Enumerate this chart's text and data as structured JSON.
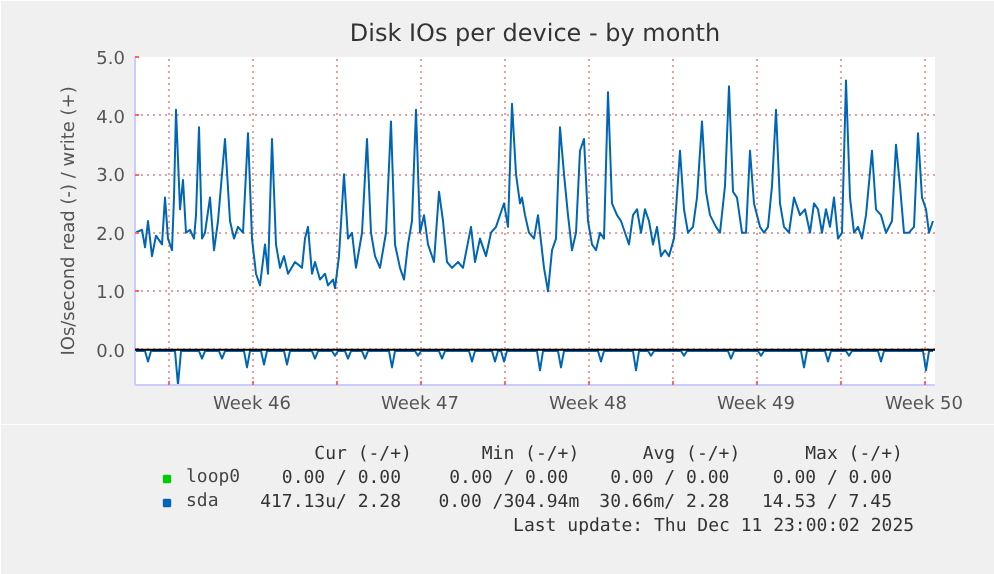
{
  "chart_data": {
    "type": "line",
    "title": "Disk IOs per device - by month",
    "ylabel": "IOs/second read (-) / write (+)",
    "xlim": [
      "2025-11-08T15:00",
      "2025-12-11T23:00"
    ],
    "ylim": [
      -0.6,
      5.0
    ],
    "xticks": [
      {
        "value": "2025-11-10T00:00",
        "label": null
      },
      {
        "value": "2025-11-13T12:00",
        "label": "Week 46"
      },
      {
        "value": "2025-11-17T00:00",
        "label": null
      },
      {
        "value": "2025-11-20T12:00",
        "label": "Week 47"
      },
      {
        "value": "2025-11-24T00:00",
        "label": null
      },
      {
        "value": "2025-11-27T12:00",
        "label": "Week 48"
      },
      {
        "value": "2025-12-01T00:00",
        "label": null
      },
      {
        "value": "2025-12-04T12:00",
        "label": "Week 49"
      },
      {
        "value": "2025-12-08T00:00",
        "label": null
      },
      {
        "value": "2025-12-11T12:00",
        "label": "Week 50"
      }
    ],
    "yticks": [
      {
        "value": 0,
        "label": "0.0"
      },
      {
        "value": 1,
        "label": "1.0"
      },
      {
        "value": 2,
        "label": "2.0"
      },
      {
        "value": 3,
        "label": "3.0"
      },
      {
        "value": 4,
        "label": "4.0"
      },
      {
        "value": 5,
        "label": "5.0"
      }
    ],
    "grid": true,
    "legend": "bottom left",
    "ref_lines": [
      {
        "axis": "y",
        "value": 0,
        "label": null,
        "color": "#000000"
      }
    ],
    "series": [
      {
        "name": "loop0",
        "color": "#00cc00"
      },
      {
        "name": "sda",
        "color": "#0066b3",
        "x": [
          "2025-11-08T15:00",
          "2025-11-08T22:00",
          "2025-11-09T01:00",
          "2025-11-09T04:00",
          "2025-11-09T08:00",
          "2025-11-09T12:00",
          "2025-11-09T18:00",
          "2025-11-09T21:00",
          "2025-11-10T00:00",
          "2025-11-10T04:00",
          "2025-11-10T06:00",
          "2025-11-10T08:00",
          "2025-11-10T12:00",
          "2025-11-10T15:00",
          "2025-11-10T18:00",
          "2025-11-10T22:00",
          "2025-11-11T02:00",
          "2025-11-11T04:00",
          "2025-11-11T07:00",
          "2025-11-11T10:00",
          "2025-11-11T13:00",
          "2025-11-11T18:00",
          "2025-11-11T22:00",
          "2025-11-12T02:00",
          "2025-11-12T09:00",
          "2025-11-12T14:00",
          "2025-11-12T18:00",
          "2025-11-12T22:00",
          "2025-11-13T03:00",
          "2025-11-13T08:00",
          "2025-11-13T12:00",
          "2025-11-13T16:00",
          "2025-11-13T20:00",
          "2025-11-14T01:00",
          "2025-11-14T04:00",
          "2025-11-14T08:00",
          "2025-11-14T12:00",
          "2025-11-14T16:00",
          "2025-11-14T20:00",
          "2025-11-15T00:00",
          "2025-11-15T07:00",
          "2025-11-15T14:00",
          "2025-11-15T17:00",
          "2025-11-15T20:00",
          "2025-11-16T00:00",
          "2025-11-16T03:00",
          "2025-11-16T08:00",
          "2025-11-16T13:00",
          "2025-11-16T16:00",
          "2025-11-16T21:00",
          "2025-11-16T23:00",
          "2025-11-17T03:00",
          "2025-11-17T08:00",
          "2025-11-17T12:00",
          "2025-11-17T16:00",
          "2025-11-17T20:00",
          "2025-11-18T02:00",
          "2025-11-18T07:00",
          "2025-11-18T11:00",
          "2025-11-18T15:00",
          "2025-11-18T20:00",
          "2025-11-19T02:00",
          "2025-11-19T07:00",
          "2025-11-19T11:00",
          "2025-11-19T16:00",
          "2025-11-19T20:00",
          "2025-11-20T00:00",
          "2025-11-20T04:00",
          "2025-11-20T08:00",
          "2025-11-20T12:00",
          "2025-11-20T16:00",
          "2025-11-20T20:00",
          "2025-11-21T02:00",
          "2025-11-21T07:00",
          "2025-11-21T11:00",
          "2025-11-21T15:00",
          "2025-11-21T20:00",
          "2025-11-22T02:00",
          "2025-11-22T07:00",
          "2025-11-22T15:00",
          "2025-11-22T19:00",
          "2025-11-23T00:00",
          "2025-11-23T06:00",
          "2025-11-23T11:00",
          "2025-11-23T16:00",
          "2025-11-23T22:00",
          "2025-11-24T00:00",
          "2025-11-24T04:00",
          "2025-11-24T08:00",
          "2025-11-24T12:00",
          "2025-11-24T16:00",
          "2025-11-24T18:00",
          "2025-11-24T21:00",
          "2025-11-25T01:00",
          "2025-11-25T06:00",
          "2025-11-25T10:00",
          "2025-11-25T16:00",
          "2025-11-25T20:00",
          "2025-11-26T00:00",
          "2025-11-26T04:00",
          "2025-11-26T08:00",
          "2025-11-26T12:00",
          "2025-11-26T16:00",
          "2025-11-26T20:00",
          "2025-11-27T00:00",
          "2025-11-27T04:00",
          "2025-11-27T08:00",
          "2025-11-27T12:00",
          "2025-11-27T16:00",
          "2025-11-27T20:00",
          "2025-11-28T00:00",
          "2025-11-28T04:00",
          "2025-11-28T08:00",
          "2025-11-28T12:00",
          "2025-11-28T17:00",
          "2025-11-28T21:00",
          "2025-11-29T01:00",
          "2025-11-29T05:00",
          "2025-11-29T09:00",
          "2025-11-29T13:00",
          "2025-11-29T17:00",
          "2025-11-29T21:00",
          "2025-11-30T01:00",
          "2025-11-30T05:00",
          "2025-11-30T09:00",
          "2025-11-30T13:00",
          "2025-11-30T17:00",
          "2025-11-30T21:00",
          "2025-12-01T02:00",
          "2025-12-01T08:00",
          "2025-12-01T12:00",
          "2025-12-01T16:00",
          "2025-12-01T21:00",
          "2025-12-02T01:00",
          "2025-12-02T06:00",
          "2025-12-02T10:00",
          "2025-12-02T14:00",
          "2025-12-02T20:00",
          "2025-12-03T00:00",
          "2025-12-03T05:00",
          "2025-12-03T09:00",
          "2025-12-03T13:00",
          "2025-12-03T17:00",
          "2025-12-03T22:00",
          "2025-12-04T02:00",
          "2025-12-04T06:00",
          "2025-12-04T10:00",
          "2025-12-04T16:00",
          "2025-12-04T20:00",
          "2025-12-05T00:00",
          "2025-12-05T04:00",
          "2025-12-05T08:00",
          "2025-12-05T12:00",
          "2025-12-05T16:00",
          "2025-12-05T21:00",
          "2025-12-06T02:00",
          "2025-12-06T08:00",
          "2025-12-06T13:00",
          "2025-12-06T18:00",
          "2025-12-06T22:00",
          "2025-12-07T02:00",
          "2025-12-07T06:00",
          "2025-12-07T10:00",
          "2025-12-07T14:00",
          "2025-12-07T18:00",
          "2025-12-07T22:00",
          "2025-12-08T02:00",
          "2025-12-08T06:00",
          "2025-12-08T10:00",
          "2025-12-08T14:00",
          "2025-12-08T18:00",
          "2025-12-08T22:00",
          "2025-12-09T02:00",
          "2025-12-09T08:00",
          "2025-12-09T12:00",
          "2025-12-09T17:00",
          "2025-12-09T22:00",
          "2025-12-10T04:00",
          "2025-12-10T08:00",
          "2025-12-10T12:00",
          "2025-12-10T16:00",
          "2025-12-10T21:00",
          "2025-12-11T02:00",
          "2025-12-11T06:00",
          "2025-12-11T10:00",
          "2025-12-11T14:00",
          "2025-12-11T17:00",
          "2025-12-11T21:00"
        ],
        "values": [
          2.0,
          2.05,
          1.75,
          2.2,
          1.6,
          1.95,
          1.8,
          2.6,
          1.9,
          1.7,
          2.6,
          4.1,
          2.4,
          2.9,
          2.0,
          2.05,
          1.9,
          2.3,
          3.8,
          1.9,
          2.0,
          2.6,
          1.7,
          2.2,
          3.6,
          2.2,
          1.9,
          2.1,
          2.0,
          3.7,
          1.9,
          1.3,
          1.1,
          1.8,
          1.3,
          3.6,
          1.8,
          1.4,
          1.6,
          1.3,
          1.5,
          1.4,
          1.9,
          2.1,
          1.3,
          1.5,
          1.2,
          1.3,
          1.1,
          1.2,
          1.05,
          1.6,
          3.0,
          1.9,
          2.0,
          1.4,
          2.0,
          3.6,
          2.0,
          1.6,
          1.4,
          2.0,
          3.9,
          1.8,
          1.4,
          1.2,
          1.8,
          2.2,
          4.1,
          2.0,
          2.3,
          1.8,
          1.5,
          2.7,
          2.2,
          1.5,
          1.4,
          1.5,
          1.4,
          2.1,
          1.5,
          1.9,
          1.6,
          2.0,
          2.1,
          2.4,
          2.5,
          2.1,
          4.2,
          3.0,
          2.5,
          2.6,
          2.3,
          2.0,
          1.9,
          2.3,
          1.4,
          1.0,
          1.7,
          1.9,
          3.8,
          3.0,
          2.3,
          1.7,
          2.0,
          3.4,
          3.6,
          2.2,
          1.8,
          1.7,
          2.0,
          1.9,
          4.4,
          2.5,
          2.3,
          2.2,
          2.0,
          1.8,
          2.3,
          2.4,
          2.0,
          2.4,
          2.2,
          1.8,
          2.1,
          1.6,
          1.7,
          1.6,
          1.9,
          3.4,
          2.4,
          2.0,
          2.1,
          2.6,
          3.9,
          2.7,
          2.3,
          2.1,
          2.0,
          2.8,
          4.5,
          2.7,
          2.6,
          2.0,
          2.0,
          3.4,
          2.5,
          2.1,
          2.0,
          2.1,
          2.8,
          4.1,
          2.5,
          2.1,
          2.0,
          2.6,
          2.3,
          2.4,
          2.0,
          2.5,
          2.4,
          2.0,
          2.4,
          2.1,
          2.6,
          1.9,
          2.0,
          4.6,
          2.6,
          2.0,
          2.1,
          1.9,
          2.3,
          3.4,
          2.4,
          2.3,
          2.0,
          2.2,
          3.5,
          2.8,
          2.0,
          2.0,
          2.1,
          3.7,
          2.6,
          2.4,
          2.0,
          2.2
        ]
      },
      {
        "color": "#0066b3",
        "x": [
          "2025-11-08T15:00",
          "2025-11-09T01:00",
          "2025-11-09T04:00",
          "2025-11-09T07:00",
          "2025-11-10T07:00",
          "2025-11-10T10:00",
          "2025-11-10T13:00",
          "2025-11-11T07:00",
          "2025-11-11T10:00",
          "2025-11-11T13:00",
          "2025-11-12T03:00",
          "2025-11-12T06:00",
          "2025-11-12T09:00",
          "2025-11-13T04:00",
          "2025-11-13T07:00",
          "2025-11-13T10:00",
          "2025-11-13T21:00",
          "2025-11-14T00:00",
          "2025-11-14T03:00",
          "2025-11-14T20:00",
          "2025-11-14T23:00",
          "2025-11-15T02:00",
          "2025-11-16T00:00",
          "2025-11-16T03:00",
          "2025-11-16T06:00",
          "2025-11-16T20:00",
          "2025-11-16T23:00",
          "2025-11-17T02:00",
          "2025-11-17T09:00",
          "2025-11-17T12:00",
          "2025-11-17T15:00",
          "2025-11-18T02:00",
          "2025-11-18T05:00",
          "2025-11-18T08:00",
          "2025-11-19T05:00",
          "2025-11-19T08:00",
          "2025-11-19T11:00",
          "2025-11-20T07:00",
          "2025-11-20T10:00",
          "2025-11-20T13:00",
          "2025-11-21T07:00",
          "2025-11-21T10:00",
          "2025-11-21T13:00",
          "2025-11-22T13:00",
          "2025-11-22T16:00",
          "2025-11-22T19:00",
          "2025-11-23T12:00",
          "2025-11-23T15:00",
          "2025-11-23T18:00",
          "2025-11-23T21:00",
          "2025-11-24T00:00",
          "2025-11-24T03:00",
          "2025-11-25T09:00",
          "2025-11-25T12:00",
          "2025-11-25T15:00",
          "2025-11-26T06:00",
          "2025-11-26T09:00",
          "2025-11-26T12:00",
          "2025-11-27T22:00",
          "2025-11-28T01:00",
          "2025-11-28T04:00",
          "2025-11-29T09:00",
          "2025-11-29T12:00",
          "2025-11-29T15:00",
          "2025-11-30T00:00",
          "2025-11-30T03:00",
          "2025-11-30T06:00",
          "2025-12-01T09:00",
          "2025-12-01T12:00",
          "2025-12-01T15:00",
          "2025-12-03T08:00",
          "2025-12-03T11:00",
          "2025-12-03T14:00",
          "2025-12-04T14:00",
          "2025-12-04T17:00",
          "2025-12-04T20:00",
          "2025-12-06T09:00",
          "2025-12-06T12:00",
          "2025-12-06T15:00",
          "2025-12-07T09:00",
          "2025-12-07T12:00",
          "2025-12-07T15:00",
          "2025-12-08T06:00",
          "2025-12-08T09:00",
          "2025-12-08T12:00",
          "2025-12-09T14:00",
          "2025-12-09T17:00",
          "2025-12-09T20:00",
          "2025-12-11T11:00",
          "2025-12-11T14:00",
          "2025-12-11T17:00",
          "2025-12-11T21:00"
        ],
        "values": [
          -0.02,
          -0.02,
          -0.2,
          -0.02,
          -0.02,
          -0.6,
          -0.02,
          -0.02,
          -0.15,
          -0.02,
          -0.02,
          -0.15,
          -0.02,
          -0.02,
          -0.3,
          -0.02,
          -0.02,
          -0.25,
          -0.02,
          -0.02,
          -0.25,
          -0.02,
          -0.02,
          -0.15,
          -0.02,
          -0.02,
          -0.1,
          -0.02,
          -0.02,
          -0.15,
          -0.02,
          -0.02,
          -0.15,
          -0.02,
          -0.02,
          -0.3,
          -0.02,
          -0.02,
          -0.1,
          -0.02,
          -0.02,
          -0.15,
          -0.02,
          -0.02,
          -0.2,
          -0.02,
          -0.02,
          -0.2,
          -0.02,
          -0.02,
          -0.2,
          -0.02,
          -0.02,
          -0.35,
          -0.02,
          -0.02,
          -0.3,
          -0.02,
          -0.02,
          -0.2,
          -0.02,
          -0.02,
          -0.35,
          -0.02,
          -0.02,
          -0.1,
          -0.02,
          -0.02,
          -0.1,
          -0.02,
          -0.02,
          -0.15,
          -0.02,
          -0.02,
          -0.1,
          -0.02,
          -0.02,
          -0.3,
          -0.02,
          -0.02,
          -0.2,
          -0.02,
          -0.02,
          -0.1,
          -0.02,
          -0.02,
          -0.2,
          -0.02,
          -0.02,
          -0.35,
          -0.02,
          -0.02
        ]
      }
    ],
    "annotations": [
      "Cur (-/+)",
      "Min (-/+)",
      "Avg (-/+)",
      "Max (-/+)",
      "0.00 /  0.00",
      "0.00 /  0.00",
      "0.00 /  0.00",
      "0.00 /  0.00",
      "417.13u/  2.28",
      "0.00 /304.94m",
      "30.66m/  2.28",
      "14.53 /  7.45",
      "Last update: Thu Dec 11 23:00:02 2025"
    ]
  }
}
